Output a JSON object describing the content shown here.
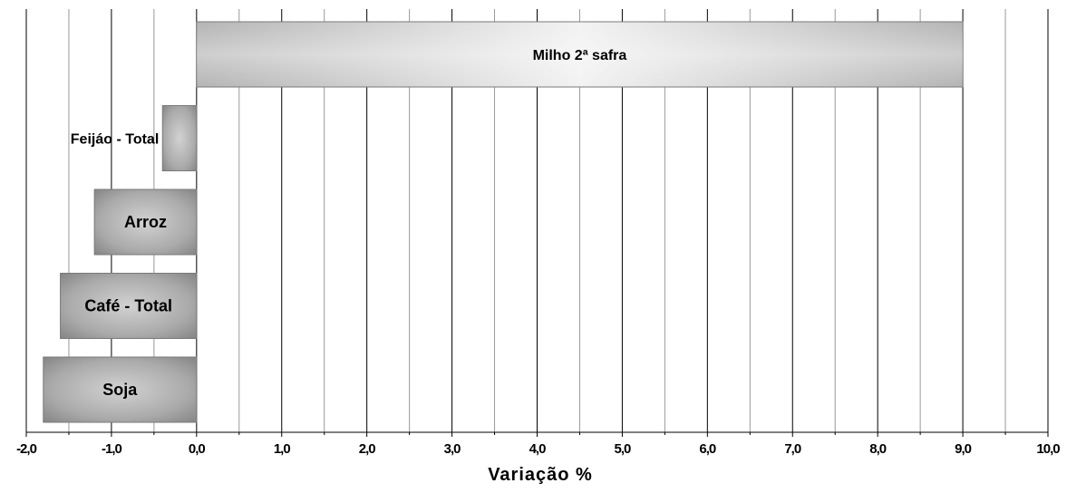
{
  "chart_data": {
    "type": "bar",
    "orientation": "horizontal",
    "title": "",
    "xlabel": "Variação %",
    "ylabel": "",
    "xlim": [
      -2.0,
      10.0
    ],
    "xticks": [
      -2.0,
      -1.0,
      0.0,
      1.0,
      2.0,
      3.0,
      4.0,
      5.0,
      6.0,
      7.0,
      8.0,
      9.0,
      10.0
    ],
    "xtick_labels": [
      "-2,0",
      "-1,0",
      "0,0",
      "1,0",
      "2,0",
      "3,0",
      "4,0",
      "5,0",
      "6,0",
      "7,0",
      "8,0",
      "9,0",
      "10,0"
    ],
    "minor_step": 0.5,
    "grid": true,
    "legend": "none",
    "categories": [
      "Milho 2ª safra",
      "Feijão - Total",
      "Arroz",
      "Café - Total",
      "Soja"
    ],
    "bar_labels": [
      "Milho 2ª safra",
      "Feijáo - Total",
      "Arroz",
      "Café - Total",
      "Soja"
    ],
    "values": [
      9.0,
      -0.4,
      -1.2,
      -1.6,
      -1.8
    ],
    "colors": {
      "bar_edge": "#7a7a7a",
      "bar_light": "#f4f4f4",
      "bar_mid": "#c0c0c0",
      "bar_dark": "#8a8a8a",
      "grid_major": "#000000",
      "grid_minor": "#999999"
    }
  }
}
